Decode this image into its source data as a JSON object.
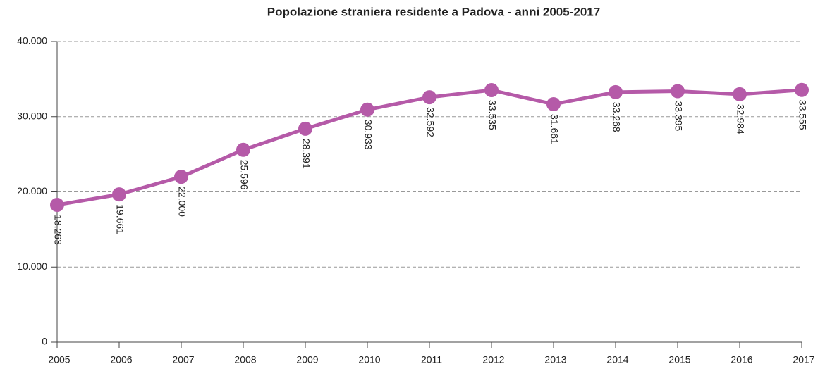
{
  "chart_data": {
    "type": "line",
    "title": "Popolazione straniera residente a Padova - anni 2005-2017",
    "categories": [
      "2005",
      "2006",
      "2007",
      "2008",
      "2009",
      "2010",
      "2011",
      "2012",
      "2013",
      "2014",
      "2015",
      "2016",
      "2017"
    ],
    "series": [
      {
        "color": "#b55aa8",
        "values": [
          18263,
          19661,
          22000,
          25596,
          28391,
          30933,
          32592,
          33535,
          31661,
          33268,
          33395,
          32984,
          33555
        ],
        "value_labels": [
          "18.263",
          "19.661",
          "22.000",
          "25.596",
          "28.391",
          "30.933",
          "32.592",
          "33.535",
          "31.661",
          "33.268",
          "33.395",
          "32.984",
          "33.555"
        ]
      }
    ],
    "ylim": [
      0,
      40000
    ],
    "yticks": [
      0,
      {
        "value": 10000,
        "label": "10.000"
      },
      {
        "value": 20000,
        "label": "20.000"
      },
      {
        "value": 30000,
        "label": "30.000"
      },
      {
        "value": 40000,
        "label": "40.000"
      }
    ],
    "grid": true
  }
}
